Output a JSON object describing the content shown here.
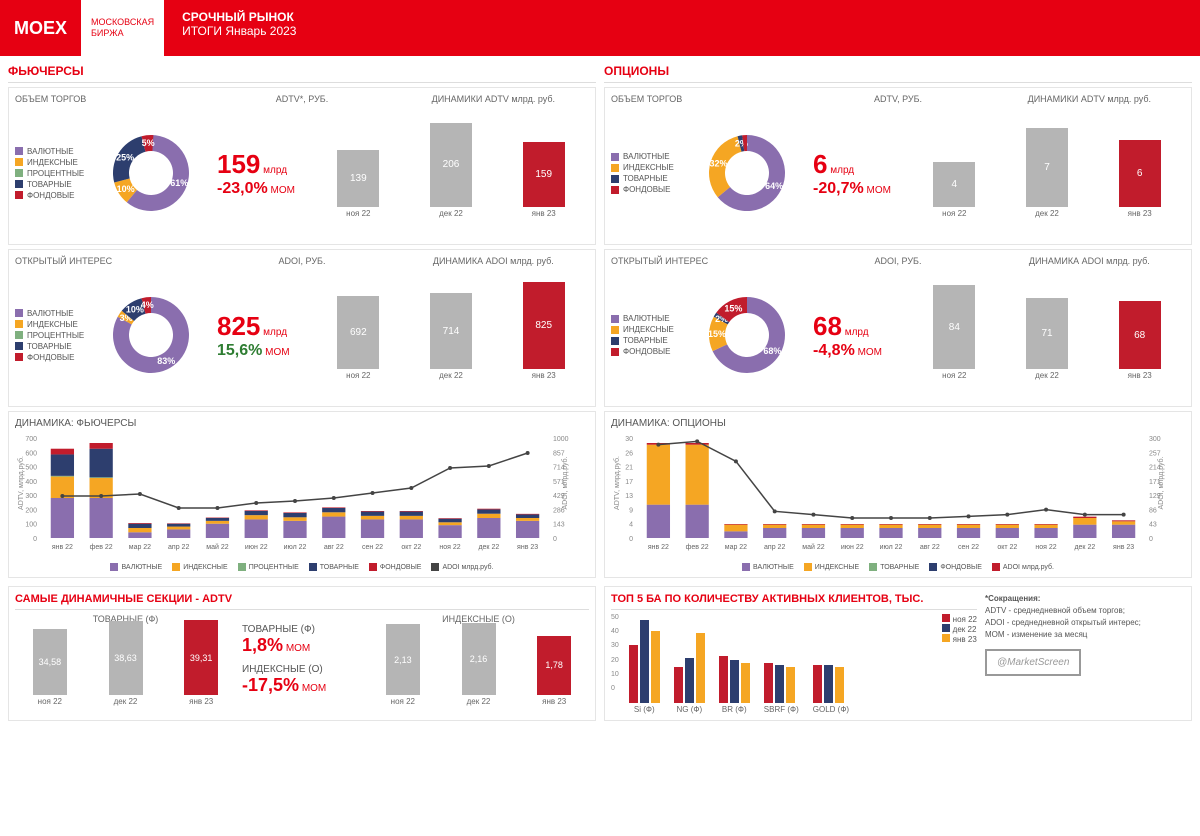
{
  "colors": {
    "red": "#e60012",
    "grey": "#b5b5b5",
    "purple": "#8a6eae",
    "orange": "#f5a623",
    "navy": "#2d3e6e",
    "green": "#7fb07f",
    "darkred": "#c11c2c"
  },
  "header": {
    "logo": "MOEX",
    "logo_sub1": "МОСКОВСКАЯ",
    "logo_sub2": "БИРЖА",
    "title1": "СРОЧНЫЙ РЫНОК",
    "title2": "ИТОГИ  Январь 2023"
  },
  "sections": {
    "futures": "ФЬЮЧЕРСЫ",
    "options": "ОПЦИОНЫ"
  },
  "legend_cats": [
    {
      "label": "ВАЛЮТНЫЕ",
      "color": "#8a6eae"
    },
    {
      "label": "ИНДЕКСНЫЕ",
      "color": "#f5a623"
    },
    {
      "label": "ПРОЦЕНТНЫЕ",
      "color": "#7fb07f"
    },
    {
      "label": "ТОВАРНЫЕ",
      "color": "#2d3e6e"
    },
    {
      "label": "ФОНДОВЫЕ",
      "color": "#c11c2c"
    }
  ],
  "legend_cats_opt": [
    {
      "label": "ВАЛЮТНЫЕ",
      "color": "#8a6eae"
    },
    {
      "label": "ИНДЕКСНЫЕ",
      "color": "#f5a623"
    },
    {
      "label": "ТОВАРНЫЕ",
      "color": "#2d3e6e"
    },
    {
      "label": "ФОНДОВЫЕ",
      "color": "#c11c2c"
    }
  ],
  "futures_adtv": {
    "row_label": "ОБЪЕМ ТОРГОВ",
    "kpi_label": "ADTV*, РУБ.",
    "chart_label": "ДИНАМИКИ ADTV млрд. руб.",
    "value": "159",
    "unit": "млрд",
    "change": "-23,0%",
    "change_class": "neg",
    "mom": "MOM",
    "donut": [
      {
        "pct": 61,
        "color": "#8a6eae",
        "label": "61%"
      },
      {
        "pct": 10,
        "color": "#f5a623",
        "label": "10%"
      },
      {
        "pct": 25,
        "color": "#2d3e6e",
        "label": "25%"
      },
      {
        "pct": 5,
        "color": "#c11c2c",
        "label": "5%"
      }
    ],
    "bars": {
      "cats": [
        "ноя 22",
        "дек 22",
        "янв 23"
      ],
      "vals": [
        139,
        206,
        159
      ],
      "colors": [
        "#b5b5b5",
        "#b5b5b5",
        "#c11c2c"
      ],
      "max": 220
    }
  },
  "futures_adoi": {
    "row_label": "ОТКРЫТЫЙ ИНТЕРЕС",
    "kpi_label": "ADOI, РУБ.",
    "chart_label": "ДИНАМИКА ADOI млрд. руб.",
    "value": "825",
    "unit": "млрд",
    "change": "15,6%",
    "change_class": "pos",
    "mom": "MOM",
    "donut": [
      {
        "pct": 83,
        "color": "#8a6eae",
        "label": "83%"
      },
      {
        "pct": 3,
        "color": "#f5a623",
        "label": "3%"
      },
      {
        "pct": 10,
        "color": "#2d3e6e",
        "label": "10%"
      },
      {
        "pct": 4,
        "color": "#c11c2c",
        "label": "4%"
      }
    ],
    "bars": {
      "cats": [
        "ноя 22",
        "дек 22",
        "янв 23"
      ],
      "vals": [
        692,
        714,
        825
      ],
      "colors": [
        "#b5b5b5",
        "#b5b5b5",
        "#c11c2c"
      ],
      "max": 850
    }
  },
  "options_adtv": {
    "row_label": "ОБЪЕМ ТОРГОВ",
    "kpi_label": "ADTV, РУБ.",
    "chart_label": "ДИНАМИКИ ADTV млрд. руб.",
    "value": "6",
    "unit": "млрд",
    "change": "-20,7%",
    "change_class": "neg",
    "mom": "MOM",
    "donut": [
      {
        "pct": 64,
        "color": "#8a6eae",
        "label": "64%"
      },
      {
        "pct": 32,
        "color": "#f5a623",
        "label": "32%"
      },
      {
        "pct": 2,
        "color": "#2d3e6e",
        "label": "2%"
      },
      {
        "pct": 2,
        "color": "#c11c2c",
        "label": ""
      }
    ],
    "bars": {
      "cats": [
        "ноя 22",
        "дек 22",
        "янв 23"
      ],
      "vals": [
        4,
        7,
        6
      ],
      "colors": [
        "#b5b5b5",
        "#b5b5b5",
        "#c11c2c"
      ],
      "max": 8
    }
  },
  "options_adoi": {
    "row_label": "ОТКРЫТЫЙ ИНТЕРЕС",
    "kpi_label": "ADOI, РУБ.",
    "chart_label": "ДИНАМИКА ADOI млрд. руб.",
    "value": "68",
    "unit": "млрд",
    "change": "-4,8%",
    "change_class": "neg",
    "mom": "MOM",
    "donut": [
      {
        "pct": 68,
        "color": "#8a6eae",
        "label": "68%"
      },
      {
        "pct": 15,
        "color": "#f5a623",
        "label": "15%"
      },
      {
        "pct": 2,
        "color": "#2d3e6e",
        "label": "2%"
      },
      {
        "pct": 15,
        "color": "#c11c2c",
        "label": "15%"
      }
    ],
    "bars": {
      "cats": [
        "ноя 22",
        "дек 22",
        "янв 23"
      ],
      "vals": [
        84,
        71,
        68
      ],
      "colors": [
        "#b5b5b5",
        "#b5b5b5",
        "#c11c2c"
      ],
      "max": 90
    }
  },
  "dynamics_futures": {
    "title": "ДИНАМИКА: ФЬЮЧЕРСЫ",
    "y_left_label": "ADTV, млрд.руб.",
    "y_right_label": "ADOI, млрд.руб.",
    "y_left_max": 700,
    "y_right_max": 1000,
    "cats": [
      "янв 22",
      "фев 22",
      "мар 22",
      "апр 22",
      "май 22",
      "июн 22",
      "июл 22",
      "авг 22",
      "сен 22",
      "окт 22",
      "ноя 22",
      "дек 22",
      "янв 23"
    ],
    "series": {
      "purple": [
        280,
        280,
        40,
        60,
        100,
        130,
        120,
        150,
        130,
        130,
        90,
        140,
        120
      ],
      "orange": [
        150,
        140,
        30,
        20,
        20,
        30,
        25,
        30,
        25,
        25,
        20,
        30,
        20
      ],
      "green": [
        5,
        5,
        0,
        0,
        0,
        0,
        0,
        0,
        0,
        0,
        0,
        0,
        0
      ],
      "navy": [
        150,
        200,
        30,
        20,
        20,
        30,
        30,
        30,
        30,
        30,
        25,
        30,
        25
      ],
      "red": [
        40,
        40,
        5,
        3,
        3,
        4,
        4,
        4,
        4,
        4,
        4,
        5,
        4
      ]
    },
    "line": [
      420,
      420,
      440,
      300,
      300,
      350,
      370,
      400,
      450,
      500,
      700,
      720,
      850
    ],
    "legend": [
      "ВАЛЮТНЫЕ",
      "ИНДЕКСНЫЕ",
      "ПРОЦЕНТНЫЕ",
      "ТОВАРНЫЕ",
      "ФОНДОВЫЕ",
      "ADOI млрд.руб."
    ]
  },
  "dynamics_options": {
    "title": "ДИНАМИКА: ОПЦИОНЫ",
    "y_left_label": "ADTV, млрд.руб.",
    "y_right_label": "ADOI, млрд.руб.",
    "y_left_max": 30,
    "y_right_max": 300,
    "cats": [
      "янв 22",
      "фев 22",
      "мар 22",
      "апр 22",
      "май 22",
      "июн 22",
      "июл 22",
      "авг 22",
      "сен 22",
      "окт 22",
      "ноя 22",
      "дек 22",
      "янв 23"
    ],
    "series": {
      "purple": [
        10,
        10,
        2,
        3,
        3,
        3,
        3,
        3,
        3,
        3,
        3,
        4,
        4
      ],
      "orange": [
        18,
        18,
        2,
        1,
        1,
        1,
        1,
        1,
        1,
        1,
        1,
        2,
        1
      ],
      "navy": [
        0,
        0,
        0,
        0,
        0,
        0,
        0,
        0,
        0,
        0,
        0,
        0,
        0
      ],
      "red": [
        0.5,
        0.5,
        0.2,
        0.2,
        0.2,
        0.2,
        0.2,
        0.2,
        0.2,
        0.2,
        0.2,
        0.4,
        0.3
      ]
    },
    "line": [
      280,
      290,
      230,
      80,
      70,
      60,
      60,
      60,
      65,
      70,
      85,
      70,
      70
    ],
    "legend": [
      "ВАЛЮТНЫЕ",
      "ИНДЕКСНЫЕ",
      "ТОВАРНЫЕ",
      "ФОНДОВЫЕ",
      "ADOI млрд.руб."
    ]
  },
  "bottom_adtv": {
    "title": "САМЫЕ ДИНАМИЧНЫЕ СЕКЦИИ - ADTV",
    "chart1_title": "ТОВАРНЫЕ (Ф)",
    "chart1": {
      "cats": [
        "ноя 22",
        "дек 22",
        "янв 23"
      ],
      "vals": [
        34.58,
        38.63,
        39.31
      ],
      "colors": [
        "#b5b5b5",
        "#b5b5b5",
        "#c11c2c"
      ],
      "max": 42
    },
    "mid1_label": "ТОВАРНЫЕ (Ф)",
    "mid1_val": "1,8%",
    "mid1_class": "neg",
    "mid2_label": "ИНДЕКСНЫЕ (О)",
    "mid2_val": "-17,5%",
    "mid2_class": "neg",
    "mom": "MOM",
    "chart2_title": "ИНДЕКСНЫЕ (О)",
    "chart2": {
      "cats": [
        "ноя 22",
        "дек 22",
        "янв 23"
      ],
      "vals": [
        2.13,
        2.16,
        1.78
      ],
      "colors": [
        "#b5b5b5",
        "#b5b5b5",
        "#c11c2c"
      ],
      "max": 2.4
    }
  },
  "bottom_top5": {
    "title": "ТОП 5 БА ПО КОЛИЧЕСТВУ АКТИВНЫХ КЛИЕНТОВ, ТЫС.",
    "cats": [
      "Si (Ф)",
      "NG (Ф)",
      "BR (Ф)",
      "SBRF (Ф)",
      "GOLD (Ф)"
    ],
    "months": [
      "ноя 22",
      "дек 22",
      "янв 23"
    ],
    "month_colors": [
      "#c11c2c",
      "#2d3e6e",
      "#f5a623"
    ],
    "data": [
      [
        32,
        46,
        40
      ],
      [
        20,
        25,
        39
      ],
      [
        26,
        24,
        22
      ],
      [
        22,
        21,
        20
      ],
      [
        21,
        21,
        20
      ]
    ],
    "y_max": 50,
    "y_ticks": [
      0,
      10,
      20,
      30,
      40,
      50
    ]
  },
  "footnote": {
    "title": "*Сокращения:",
    "lines": [
      "ADTV - среднедневной объем торгов;",
      "ADOI - среднедневной открытый интерес;",
      "MOM - изменение за месяц"
    ],
    "watermark": "@MarketScreen"
  }
}
